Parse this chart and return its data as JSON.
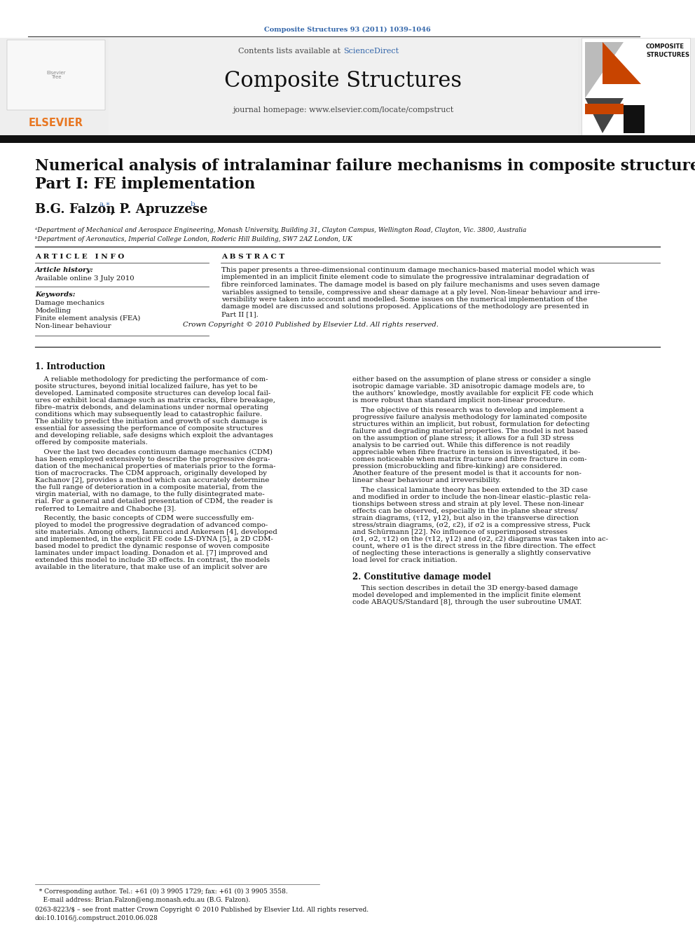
{
  "journal_ref": "Composite Structures 93 (2011) 1039–1046",
  "journal_name": "Composite Structures",
  "contents_text": "Contents lists available at ScienceDirect",
  "science_direct_color": "#3366aa",
  "journal_homepage": "journal homepage: www.elsevier.com/locate/compstruct",
  "elsevier_color": "#e87722",
  "paper_title_line1": "Numerical analysis of intralaminar failure mechanisms in composite structures.",
  "paper_title_line2": "Part I: FE implementation",
  "authors_main": "B.G. Falzon",
  "authors_super1": "a,∗",
  "authors_comma": ", P. Apruzzese",
  "authors_super2": "b",
  "affil1": "ᵃDepartment of Mechanical and Aerospace Engineering, Monash University, Building 31, Clayton Campus, Wellington Road, Clayton, Vic. 3800, Australia",
  "affil2": "ᵇDepartment of Aeronautics, Imperial College London, Roderic Hill Building, SW7 2AZ London, UK",
  "article_info_title": "A R T I C L E   I N F O",
  "abstract_title": "A B S T R A C T",
  "article_history_label": "Article history:",
  "article_history_date": "Available online 3 July 2010",
  "keywords_label": "Keywords:",
  "keywords": [
    "Damage mechanics",
    "Modelling",
    "Finite element analysis (FEA)",
    "Non-linear behaviour"
  ],
  "abstract_lines": [
    "This paper presents a three-dimensional continuum damage mechanics-based material model which was",
    "implemented in an implicit finite element code to simulate the progressive intralaminar degradation of",
    "fibre reinforced laminates. The damage model is based on ply failure mechanisms and uses seven damage",
    "variables assigned to tensile, compressive and shear damage at a ply level. Non-linear behaviour and irre-",
    "versibility were taken into account and modelled. Some issues on the numerical implementation of the",
    "damage model are discussed and solutions proposed. Applications of the methodology are presented in",
    "Part II [1]."
  ],
  "copyright_text": "Crown Copyright © 2010 Published by Elsevier Ltd. All rights reserved.",
  "section1_title": "1. Introduction",
  "col1_lines_p1": [
    "    A reliable methodology for predicting the performance of com-",
    "posite structures, beyond initial localized failure, has yet to be",
    "developed. Laminated composite structures can develop local fail-",
    "ures or exhibit local damage such as matrix cracks, fibre breakage,",
    "fibre–matrix debonds, and delaminations under normal operating",
    "conditions which may subsequently lead to catastrophic failure.",
    "The ability to predict the initiation and growth of such damage is",
    "essential for assessing the performance of composite structures",
    "and developing reliable, safe designs which exploit the advantages",
    "offered by composite materials."
  ],
  "col1_lines_p2": [
    "    Over the last two decades continuum damage mechanics (CDM)",
    "has been employed extensively to describe the progressive degra-",
    "dation of the mechanical properties of materials prior to the forma-",
    "tion of macrocracks. The CDM approach, originally developed by",
    "Kachanov [2], provides a method which can accurately determine",
    "the full range of deterioration in a composite material, from the",
    "virgin material, with no damage, to the fully disintegrated mate-",
    "rial. For a general and detailed presentation of CDM, the reader is",
    "referred to Lemaitre and Chaboche [3]."
  ],
  "col1_lines_p3": [
    "    Recently, the basic concepts of CDM were successfully em-",
    "ployed to model the progressive degradation of advanced compo-",
    "site materials. Among others, Iannucci and Ankersen [4], developed",
    "and implemented, in the explicit FE code LS-DYNA [5], a 2D CDM-",
    "based model to predict the dynamic response of woven composite",
    "laminates under impact loading. Donadon et al. [7] improved and",
    "extended this model to include 3D effects. In contrast, the models",
    "available in the literature, that make use of an implicit solver are"
  ],
  "col2_lines_p1": [
    "either based on the assumption of plane stress or consider a single",
    "isotropic damage variable. 3D anisotropic damage models are, to",
    "the authors’ knowledge, mostly available for explicit FE code which",
    "is more robust than standard implicit non-linear procedure."
  ],
  "col2_lines_p2": [
    "    The objective of this research was to develop and implement a",
    "progressive failure analysis methodology for laminated composite",
    "structures within an implicit, but robust, formulation for detecting",
    "failure and degrading material properties. The model is not based",
    "on the assumption of plane stress; it allows for a full 3D stress",
    "analysis to be carried out. While this difference is not readily",
    "appreciable when fibre fracture in tension is investigated, it be-",
    "comes noticeable when matrix fracture and fibre fracture in com-",
    "pression (microbuckling and fibre-kinking) are considered.",
    "Another feature of the present model is that it accounts for non-",
    "linear shear behaviour and irreversibility."
  ],
  "col2_lines_p3": [
    "    The classical laminate theory has been extended to the 3D case",
    "and modified in order to include the non-linear elastic–plastic rela-",
    "tionships between stress and strain at ply level. These non-linear",
    "effects can be observed, especially in the in-plane shear stress/",
    "strain diagrams, (τ12, γ12), but also in the transverse direction",
    "stress/strain diagrams, (σ2, ε2), if σ2 is a compressive stress, Puck",
    "and Schürmann [22]. No influence of superimposed stresses",
    "(σ1, σ2, τ12) on the (τ12, γ12) and (σ2, ε2) diagrams was taken into ac-",
    "count, where σ1 is the direct stress in the fibre direction. The effect",
    "of neglecting these interactions is generally a slightly conservative",
    "load level for crack initiation."
  ],
  "section2_title": "2. Constitutive damage model",
  "col2_lines_s2p1": [
    "    This section describes in detail the 3D energy-based damage",
    "model developed and implemented in the implicit finite element",
    "code ABAQUS/Standard [8], through the user subroutine UMAT."
  ],
  "footnote_star": "  * Corresponding author. Tel.: +61 (0) 3 9905 1729; fax: +61 (0) 3 9905 3558.",
  "footnote_email": "    E-mail address: Brian.Falzon@eng.monash.edu.au (B.G. Falzon).",
  "issn_text": "0263-8223/$ – see front matter Crown Copyright © 2010 Published by Elsevier Ltd. All rights reserved.",
  "doi_text": "doi:10.1016/j.compstruct.2010.06.028",
  "bg_color": "#ffffff",
  "dark_bar_color": "#111111"
}
